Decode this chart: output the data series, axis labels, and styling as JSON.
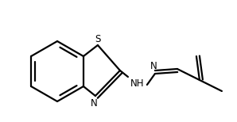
{
  "background": "#ffffff",
  "lw": 1.6,
  "fig_w": 2.98,
  "fig_h": 1.54,
  "dpi": 100,
  "font_size": 8.5,
  "atoms": {
    "S": {
      "label": "S",
      "fs": 8.5
    },
    "N1": {
      "label": "N",
      "fs": 8.5
    },
    "NH": {
      "label": "NH",
      "fs": 8.5
    },
    "N2": {
      "label": "N",
      "fs": 8.5
    }
  }
}
